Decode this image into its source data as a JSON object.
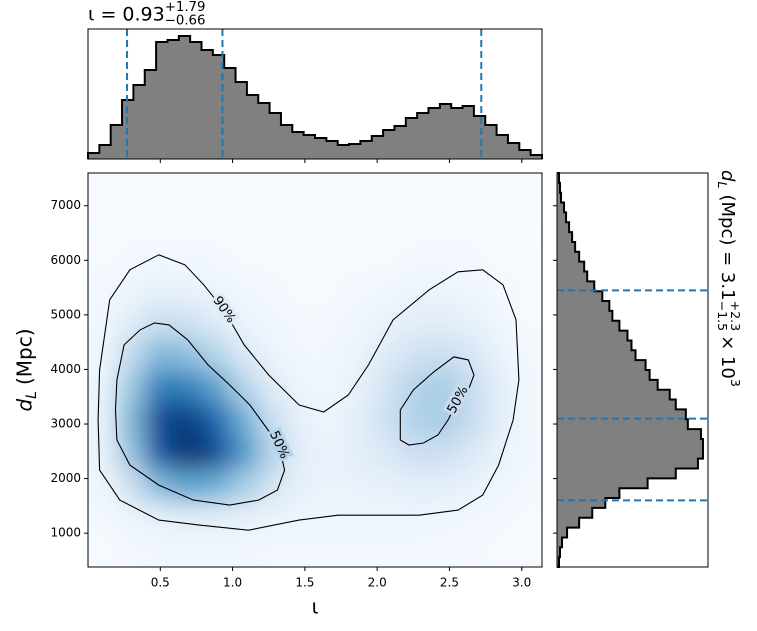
{
  "chart_data": {
    "type": "corner",
    "xlabel": "ι",
    "ylabel": {
      "symbol": "d",
      "subscript": "L",
      "unit": "(Mpc)"
    },
    "xlim": [
      0,
      3.14
    ],
    "xticks": [
      0.5,
      {
        "value": 1,
        "label": "1.0"
      },
      1.5,
      {
        "value": 2,
        "label": "2.0"
      },
      2.5,
      {
        "value": 3,
        "label": "3.0"
      }
    ],
    "ylim": [
      380,
      7600
    ],
    "yticks": [
      1000,
      2000,
      3000,
      4000,
      5000,
      6000,
      7000
    ],
    "density": {
      "xbins": [
        0,
        0.19625,
        0.3925,
        0.58875,
        0.785,
        0.98125,
        1.1775,
        1.37375,
        1.57,
        1.76625,
        1.9625,
        2.15875,
        2.355,
        2.55125,
        2.7475,
        2.94375,
        3.14
      ],
      "ybins": [
        380,
        981.67,
        1583.33,
        2185,
        2786.67,
        3388.33,
        3990,
        4591.67,
        5193.33,
        5795,
        6396.67,
        6998.33,
        7600
      ],
      "z": [
        [
          0.01,
          0.02,
          0.03,
          0.03,
          0.03,
          0.03,
          0.02,
          0.02,
          0.02,
          0.02,
          0.02,
          0.02,
          0.02,
          0.02,
          0.01,
          0.01
        ],
        [
          0.02,
          0.05,
          0.08,
          0.1,
          0.1,
          0.08,
          0.06,
          0.05,
          0.05,
          0.05,
          0.05,
          0.05,
          0.04,
          0.03,
          0.02,
          0.01
        ],
        [
          0.04,
          0.2,
          0.45,
          0.55,
          0.5,
          0.35,
          0.18,
          0.08,
          0.06,
          0.07,
          0.08,
          0.1,
          0.1,
          0.07,
          0.04,
          0.02
        ],
        [
          0.06,
          0.4,
          0.85,
          1.0,
          0.9,
          0.6,
          0.3,
          0.1,
          0.06,
          0.1,
          0.15,
          0.22,
          0.22,
          0.15,
          0.07,
          0.03
        ],
        [
          0.06,
          0.45,
          0.9,
          0.95,
          0.8,
          0.5,
          0.22,
          0.08,
          0.05,
          0.1,
          0.2,
          0.32,
          0.35,
          0.25,
          0.1,
          0.03
        ],
        [
          0.05,
          0.38,
          0.7,
          0.7,
          0.55,
          0.3,
          0.12,
          0.05,
          0.04,
          0.08,
          0.18,
          0.3,
          0.35,
          0.25,
          0.1,
          0.03
        ],
        [
          0.04,
          0.25,
          0.45,
          0.42,
          0.3,
          0.14,
          0.06,
          0.03,
          0.03,
          0.06,
          0.12,
          0.2,
          0.22,
          0.16,
          0.07,
          0.02
        ],
        [
          0.03,
          0.12,
          0.22,
          0.2,
          0.12,
          0.06,
          0.03,
          0.02,
          0.02,
          0.04,
          0.07,
          0.1,
          0.11,
          0.08,
          0.04,
          0.01
        ],
        [
          0.02,
          0.05,
          0.08,
          0.07,
          0.05,
          0.03,
          0.02,
          0.01,
          0.01,
          0.02,
          0.03,
          0.05,
          0.05,
          0.04,
          0.02,
          0.01
        ],
        [
          0.01,
          0.02,
          0.03,
          0.03,
          0.02,
          0.01,
          0.01,
          0.01,
          0.01,
          0.01,
          0.01,
          0.02,
          0.02,
          0.02,
          0.01,
          0.01
        ],
        [
          0,
          0,
          0,
          0,
          0,
          0,
          0,
          0,
          0,
          0,
          0,
          0,
          0,
          0,
          0,
          0
        ],
        [
          0,
          0,
          0,
          0,
          0,
          0,
          0,
          0,
          0,
          0,
          0,
          0,
          0,
          0,
          0,
          0
        ]
      ],
      "colormap": [
        "#f7fbff",
        "#deebf7",
        "#c6dbef",
        "#9ecae1",
        "#6baed6",
        "#4292c6",
        "#2171b5",
        "#08519c",
        "#08306b"
      ]
    },
    "contours": [
      {
        "label": "90%",
        "x": [
          0.07,
          0.08,
          0.15,
          0.29,
          0.49,
          0.67,
          0.8,
          0.94,
          1.08,
          1.25,
          1.46,
          1.63,
          1.8,
          1.94,
          2.11,
          2.36,
          2.56,
          2.73,
          2.87,
          2.96,
          2.98,
          2.94,
          2.84,
          2.73,
          2.56,
          2.29,
          2.01,
          1.73,
          1.46,
          1.11,
          0.77,
          0.49,
          0.22,
          0.08,
          0.07
        ],
        "y": [
          3074,
          3991,
          5276,
          5826,
          6101,
          5918,
          5551,
          5092,
          4450,
          3899,
          3349,
          3220,
          3532,
          4083,
          4909,
          5459,
          5789,
          5826,
          5551,
          4909,
          3808,
          3074,
          2248,
          1697,
          1422,
          1330,
          1330,
          1330,
          1239,
          1055,
          1147,
          1239,
          1606,
          2156,
          3074
        ]
      },
      {
        "label": "50%",
        "x": [
          0.2,
          0.25,
          0.36,
          0.46,
          0.56,
          0.69,
          0.83,
          0.98,
          1.12,
          1.22,
          1.32,
          1.36,
          1.31,
          1.18,
          0.98,
          0.73,
          0.49,
          0.29,
          0.2,
          0.19,
          0.2
        ],
        "y": [
          3808,
          4450,
          4725,
          4854,
          4817,
          4542,
          4083,
          3716,
          3349,
          2982,
          2615,
          2156,
          1789,
          1606,
          1514,
          1606,
          1881,
          2248,
          2707,
          3257,
          3808
        ]
      },
      {
        "label": "50%",
        "x": [
          2.16,
          2.16,
          2.25,
          2.39,
          2.53,
          2.63,
          2.67,
          2.63,
          2.56,
          2.49,
          2.42,
          2.32,
          2.22,
          2.16
        ],
        "y": [
          2707,
          3257,
          3624,
          3954,
          4230,
          4175,
          3899,
          3624,
          3441,
          3074,
          2798,
          2652,
          2615,
          2707
        ]
      }
    ],
    "top_hist": {
      "title": {
        "base": "ι = 0.93",
        "sup": "+1.79",
        "sub": "−0.66"
      },
      "bins": [
        0,
        0.0785,
        0.157,
        0.2355,
        0.314,
        0.3925,
        0.471,
        0.5495,
        0.628,
        0.7065,
        0.785,
        0.8635,
        0.942,
        1.0205,
        1.099,
        1.1775,
        1.256,
        1.3345,
        1.413,
        1.4915,
        1.57,
        1.6485,
        1.727,
        1.8055,
        1.884,
        1.9625,
        2.041,
        2.1195,
        2.198,
        2.2765,
        2.355,
        2.4335,
        2.512,
        2.5905,
        2.669,
        2.7475,
        2.826,
        2.9045,
        2.983,
        3.0615,
        3.14
      ],
      "counts": [
        6,
        14,
        34,
        59,
        74,
        89,
        117,
        119,
        123,
        117,
        109,
        104,
        91,
        77,
        64,
        56,
        46,
        34,
        27,
        24,
        21,
        18,
        14,
        15,
        18,
        23,
        29,
        33,
        41,
        46,
        51,
        55,
        51,
        53,
        43,
        34,
        24,
        16,
        9,
        4
      ],
      "ylim": [
        0,
        130
      ],
      "lines": [
        0.27,
        0.93,
        2.72
      ]
    },
    "right_hist": {
      "label": {
        "symbol": "d",
        "subscript": "L",
        "base": "(Mpc) = 3.1",
        "sup": "+2.3",
        "sub": "−1.5",
        "times": "× 10",
        "exponent": "3"
      },
      "bins": [
        380,
        560.5,
        741,
        921.5,
        1102,
        1282.5,
        1463,
        1643.5,
        1824,
        2004.5,
        2185,
        2365.5,
        2546,
        2726.5,
        2907,
        3087.5,
        3268,
        3448.5,
        3629,
        3809.5,
        3990,
        4170.5,
        4351,
        4531.5,
        4712,
        4892.5,
        5073,
        5253.5,
        5434,
        5614.5,
        5795,
        5975.5,
        6156,
        6336.5,
        6517,
        6697.5,
        6878,
        7058.5,
        7239,
        7419.5,
        7600
      ],
      "counts": [
        2,
        3,
        5,
        10,
        22,
        35,
        48,
        62,
        90,
        118,
        140,
        145,
        145,
        143,
        130,
        128,
        118,
        112,
        100,
        92,
        88,
        78,
        74,
        70,
        62,
        55,
        52,
        45,
        37,
        30,
        27,
        22,
        18,
        15,
        12,
        9,
        7,
        4,
        3,
        2
      ],
      "xlim": [
        0,
        150
      ],
      "lines": [
        1600,
        3100,
        5450
      ]
    },
    "hist_color": "#808080",
    "line_color": "#1f77b4"
  }
}
